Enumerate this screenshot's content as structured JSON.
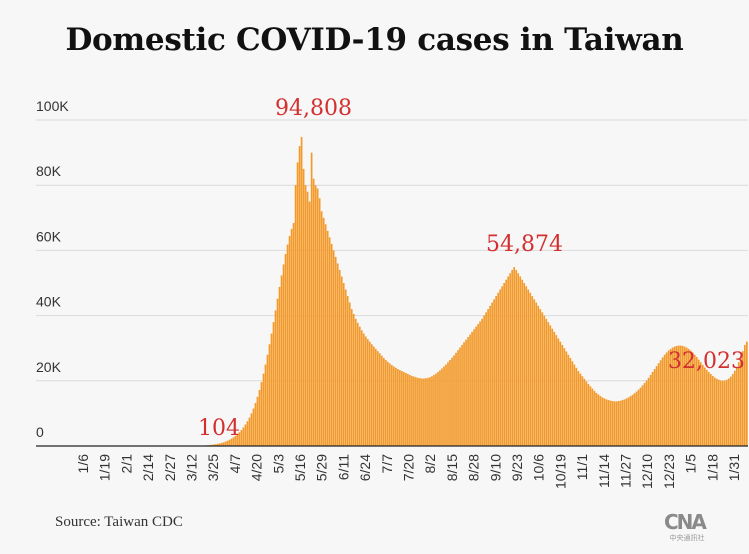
{
  "chart_data": {
    "type": "bar",
    "title": "Domestic COVID-19 cases in Taiwan",
    "source": "Source: Taiwan CDC",
    "bar_color": "#f39a2a",
    "annotation_color": "#d32f2f",
    "ylim": [
      0,
      100000
    ],
    "y_ticks": [
      0,
      20000,
      40000,
      60000,
      80000,
      100000
    ],
    "y_tick_labels": [
      "0",
      "20K",
      "40K",
      "60K",
      "80K",
      "100K"
    ],
    "grid": true,
    "x_ticks": [
      "1/6",
      "1/19",
      "2/1",
      "2/14",
      "2/27",
      "3/12",
      "3/25",
      "4/7",
      "4/20",
      "5/3",
      "5/16",
      "5/29",
      "6/11",
      "6/24",
      "7/7",
      "7/20",
      "8/2",
      "8/15",
      "8/28",
      "9/10",
      "9/23",
      "10/6",
      "10/19",
      "11/1",
      "11/14",
      "11/27",
      "12/10",
      "12/23",
      "1/5",
      "1/18",
      "1/31"
    ],
    "annotations": [
      {
        "label": "104",
        "x": "3/28",
        "value": 104
      },
      {
        "label": "94,808",
        "x": "5/27",
        "value": 94808
      },
      {
        "label": "54,874",
        "x": "10/3",
        "value": 54874
      },
      {
        "label": "32,023",
        "x": "1/31",
        "value": 32023
      }
    ],
    "series": [
      {
        "values": [
          0,
          0,
          0,
          0,
          0,
          0,
          0,
          0,
          0,
          0,
          0,
          0,
          0,
          0,
          0,
          0,
          0,
          0,
          0,
          0,
          0,
          0,
          0,
          0,
          0,
          0,
          0,
          0,
          0,
          0,
          0,
          0,
          0,
          0,
          0,
          0,
          0,
          0,
          0,
          0,
          0,
          0,
          0,
          0,
          0,
          0,
          0,
          0,
          0,
          0,
          0,
          0,
          0,
          0,
          0,
          0,
          0,
          0,
          0,
          0,
          0,
          0,
          0,
          0,
          0,
          0,
          0,
          0,
          0,
          0,
          0,
          0,
          0,
          0,
          0,
          0,
          0,
          0,
          0,
          0,
          0,
          0,
          104,
          140,
          180,
          230,
          290,
          360,
          440,
          540,
          650,
          780,
          940,
          1130,
          1350,
          1600,
          1900,
          2250,
          2650,
          3100,
          3600,
          4200,
          4900,
          5700,
          6600,
          7600,
          8700,
          10000,
          11500,
          13200,
          15100,
          17200,
          19600,
          22200,
          25000,
          28000,
          31200,
          34500,
          38000,
          41600,
          45200,
          48800,
          52300,
          55700,
          58900,
          61800,
          64400,
          66600,
          68400,
          80000,
          87000,
          92000,
          94808,
          85000,
          80000,
          78000,
          75000,
          90000,
          82000,
          80000,
          79000,
          76000,
          72000,
          70000,
          68000,
          66000,
          64000,
          62000,
          60000,
          58000,
          56000,
          54000,
          52000,
          50000,
          48000,
          46000,
          44000,
          42000,
          40500,
          39000,
          37800,
          36600,
          35500,
          34500,
          33600,
          32800,
          32000,
          31200,
          30500,
          29800,
          29100,
          28400,
          27700,
          27000,
          26400,
          25800,
          25300,
          24800,
          24400,
          24000,
          23600,
          23300,
          23000,
          22700,
          22400,
          22100,
          21800,
          21500,
          21300,
          21100,
          20900,
          20800,
          20700,
          20700,
          20800,
          20900,
          21100,
          21400,
          21800,
          22200,
          22700,
          23200,
          23800,
          24400,
          25000,
          25700,
          26400,
          27100,
          27800,
          28600,
          29400,
          30200,
          31000,
          31800,
          32600,
          33400,
          34200,
          35000,
          35800,
          36600,
          37400,
          38200,
          39000,
          40000,
          41000,
          42000,
          43000,
          44000,
          45000,
          46000,
          47000,
          48000,
          49000,
          50000,
          51000,
          52000,
          53000,
          54000,
          54874,
          54000,
          53000,
          52000,
          51000,
          50000,
          49000,
          48000,
          47000,
          46000,
          45000,
          44000,
          43000,
          42000,
          41000,
          40000,
          39000,
          38000,
          37000,
          36000,
          35000,
          34000,
          33000,
          32000,
          31000,
          30000,
          29000,
          28000,
          27000,
          26000,
          25000,
          24000,
          23000,
          22200,
          21400,
          20600,
          19800,
          19000,
          18300,
          17600,
          16900,
          16300,
          15800,
          15300,
          14900,
          14600,
          14300,
          14100,
          13900,
          13800,
          13700,
          13700,
          13800,
          13900,
          14100,
          14300,
          14600,
          14900,
          15300,
          15700,
          16200,
          16700,
          17300,
          17900,
          18600,
          19300,
          20100,
          20900,
          21800,
          22700,
          23600,
          24500,
          25400,
          26300,
          27200,
          28000,
          28700,
          29300,
          29800,
          30200,
          30500,
          30700,
          30800,
          30800,
          30700,
          30500,
          30200,
          29800,
          29300,
          28700,
          28000,
          27300,
          26500,
          25700,
          24900,
          24100,
          23400,
          22700,
          22100,
          21500,
          21000,
          20600,
          20300,
          20100,
          20000,
          20100,
          20300,
          20700,
          21300,
          22100,
          23100,
          24300,
          25700,
          27300,
          29100,
          31000,
          32023
        ]
      }
    ]
  }
}
